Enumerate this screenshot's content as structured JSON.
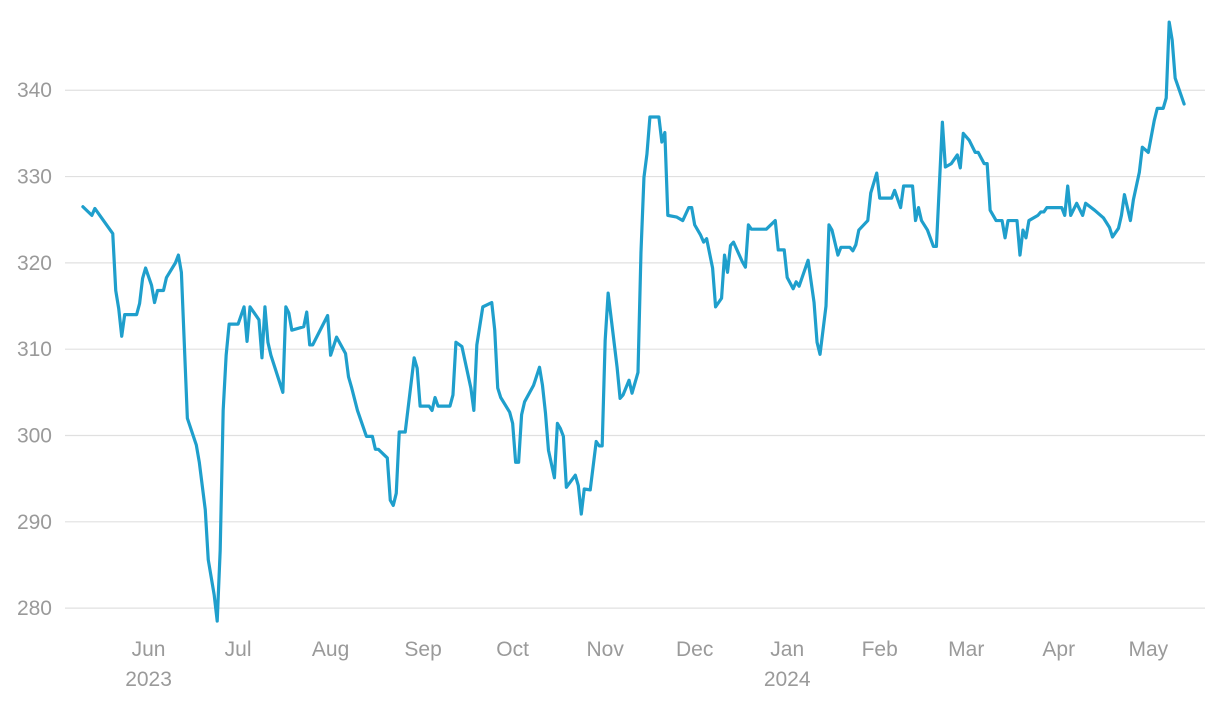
{
  "chart_data": {
    "type": "line",
    "x": [
      -22,
      -19,
      -18,
      -12,
      -11,
      -10,
      -9,
      -8,
      -4,
      -3,
      -2,
      -1,
      1,
      2,
      3,
      5,
      6,
      9,
      10,
      11,
      13,
      16,
      17,
      19,
      20,
      22,
      23,
      24,
      25,
      26,
      27,
      30,
      32,
      33,
      34,
      37,
      38,
      39,
      40,
      41,
      45,
      46,
      47,
      48,
      52,
      53,
      54,
      55,
      60,
      61,
      63,
      66,
      67,
      68,
      70,
      73,
      75,
      76,
      77,
      80,
      81,
      82,
      83,
      84,
      86,
      89,
      90,
      91,
      94,
      95,
      96,
      97,
      101,
      102,
      103,
      105,
      108,
      109,
      110,
      112,
      115,
      116,
      117,
      118,
      121,
      122,
      123,
      124,
      125,
      126,
      129,
      131,
      132,
      133,
      134,
      136,
      137,
      138,
      139,
      140,
      143,
      144,
      145,
      146,
      148,
      150,
      151,
      152,
      153,
      154,
      157,
      158,
      159,
      161,
      162,
      164,
      165,
      166,
      167,
      168,
      171,
      172,
      173,
      174,
      177,
      179,
      181,
      182,
      183,
      185,
      186,
      187,
      189,
      190,
      192,
      193,
      194,
      195,
      196,
      199,
      200,
      201,
      202,
      207,
      210,
      211,
      213,
      214,
      216,
      217,
      218,
      221,
      223,
      224,
      225,
      227,
      228,
      229,
      231,
      232,
      235,
      236,
      237,
      238,
      241,
      242,
      244,
      245,
      249,
      250,
      252,
      253,
      256,
      257,
      258,
      259,
      261,
      263,
      264,
      266,
      267,
      269,
      271,
      272,
      273,
      275,
      277,
      278,
      280,
      281,
      282,
      284,
      286,
      287,
      288,
      291,
      292,
      293,
      294,
      295,
      298,
      299,
      300,
      301,
      306,
      307,
      308,
      309,
      311,
      313,
      314,
      317,
      320,
      322,
      323,
      325,
      326,
      327,
      329,
      330,
      332,
      333,
      335,
      337,
      338,
      340,
      341,
      342,
      343,
      344,
      347
    ],
    "series": [
      {
        "color": "#1f9fcc",
        "values": [
          326.5,
          325.5,
          326.3,
          323.4,
          316.8,
          314.7,
          311.5,
          314,
          314,
          315.3,
          318.2,
          319.4,
          317.4,
          315.4,
          316.8,
          316.8,
          318.3,
          320,
          320.9,
          318.9,
          302,
          298.9,
          296.9,
          291.4,
          285.6,
          281.5,
          278.5,
          286.7,
          302.9,
          309.3,
          312.9,
          312.9,
          314.9,
          310.9,
          314.9,
          313.4,
          309,
          314.9,
          310.8,
          309.3,
          305,
          314.9,
          314.2,
          312.2,
          312.6,
          314.3,
          310.5,
          310.5,
          313.9,
          309.3,
          311.4,
          309.5,
          306.8,
          305.6,
          302.9,
          299.9,
          299.9,
          298.4,
          298.4,
          297.4,
          292.5,
          291.9,
          293.3,
          300.4,
          300.4,
          309,
          307.8,
          303.4,
          303.4,
          302.9,
          304.4,
          303.4,
          303.4,
          304.7,
          310.8,
          310.3,
          305.5,
          302.9,
          310.5,
          314.9,
          315.4,
          312.2,
          305.5,
          304.4,
          302.7,
          301.4,
          296.9,
          296.9,
          302.4,
          303.9,
          305.8,
          307.9,
          305.8,
          302.6,
          298.3,
          295.1,
          301.4,
          300.8,
          299.9,
          294,
          295.4,
          294.2,
          290.9,
          293.8,
          293.7,
          299.3,
          298.8,
          298.8,
          311,
          316.5,
          307.9,
          304.3,
          304.7,
          306.4,
          304.9,
          307.3,
          321.2,
          329.9,
          332.6,
          336.9,
          336.9,
          334,
          335.1,
          325.5,
          325.3,
          324.9,
          326.4,
          326.4,
          324.4,
          323.2,
          322.4,
          322.8,
          319.4,
          314.9,
          315.9,
          320.9,
          318.9,
          322,
          322.4,
          320.1,
          319.5,
          324.4,
          323.9,
          323.9,
          324.9,
          321.5,
          321.5,
          318.3,
          317,
          317.8,
          317.3,
          320.3,
          315.4,
          310.8,
          309.4,
          315,
          324.4,
          323.8,
          320.9,
          321.8,
          321.8,
          321.4,
          322.1,
          323.8,
          324.9,
          328.1,
          330.4,
          327.5,
          327.5,
          328.4,
          326.4,
          328.9,
          328.9,
          324.9,
          326.4,
          324.9,
          323.8,
          321.9,
          321.9,
          336.3,
          331.1,
          331.5,
          332.5,
          331,
          335,
          334.2,
          332.8,
          332.8,
          331.5,
          331.5,
          326.1,
          324.9,
          324.9,
          322.9,
          324.9,
          324.9,
          320.9,
          323.8,
          322.9,
          324.9,
          325.5,
          325.9,
          325.9,
          326.4,
          326.4,
          325.5,
          328.9,
          325.5,
          326.9,
          325.5,
          326.9,
          326.1,
          325.2,
          324.1,
          323,
          324,
          325.5,
          327.9,
          324.9,
          327.3,
          330.5,
          333.4,
          332.8,
          336.5,
          337.9,
          337.9,
          339.1,
          347.9,
          345.8,
          341.4,
          338.4
        ]
      }
    ],
    "xlim": [
      -28,
      354
    ],
    "xticks": [
      {
        "value": 0,
        "label": "Jun 2023"
      },
      {
        "value": 30,
        "label": "Jul"
      },
      {
        "value": 61,
        "label": "Aug"
      },
      {
        "value": 92,
        "label": "Sep"
      },
      {
        "value": 122,
        "label": "Oct"
      },
      {
        "value": 153,
        "label": "Nov"
      },
      {
        "value": 183,
        "label": "Dec"
      },
      {
        "value": 214,
        "label": "Jan 2024"
      },
      {
        "value": 245,
        "label": "Feb"
      },
      {
        "value": 274,
        "label": "Mar"
      },
      {
        "value": 305,
        "label": "Apr"
      },
      {
        "value": 335,
        "label": "May"
      }
    ],
    "ylim": [
      277,
      348.6
    ],
    "yticks": [
      280,
      290,
      300,
      310,
      320,
      330,
      340
    ],
    "grid": true
  }
}
